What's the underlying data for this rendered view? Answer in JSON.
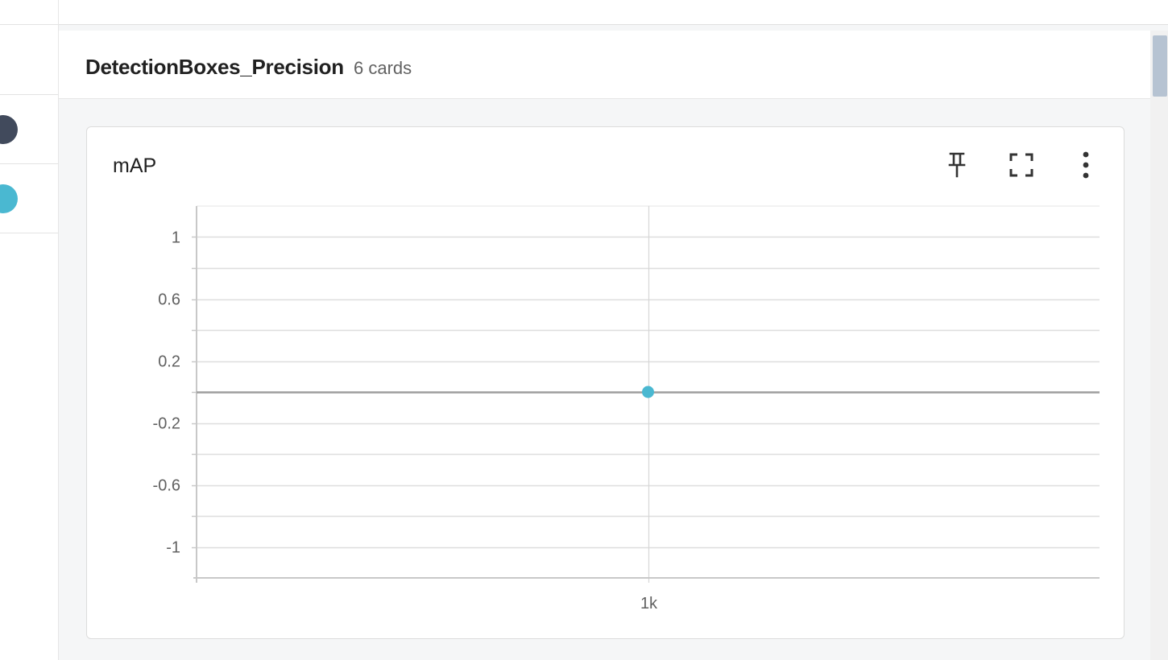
{
  "sidebar": {
    "runs": [
      {
        "color": "#414a5c"
      },
      {
        "color": "#4ab8d1"
      }
    ]
  },
  "group": {
    "title": "DetectionBoxes_Precision",
    "count_label": "6 cards"
  },
  "card": {
    "title": "mAP",
    "icons": [
      "pin-icon",
      "fullscreen-icon",
      "more-vert-icon"
    ]
  },
  "chart_data": {
    "type": "line",
    "title": "mAP",
    "xlabel": "",
    "ylabel": "",
    "x_ticks": [
      {
        "value": 1000,
        "label": "1k"
      }
    ],
    "y_ticks": [
      {
        "value": 1,
        "label": "1"
      },
      {
        "value": 0.6,
        "label": "0.6"
      },
      {
        "value": 0.2,
        "label": "0.2"
      },
      {
        "value": -0.2,
        "label": "-0.2"
      },
      {
        "value": -0.6,
        "label": "-0.6"
      },
      {
        "value": -1,
        "label": "-1"
      }
    ],
    "ylim": [
      -1.2,
      1.2
    ],
    "xlim": [
      0,
      2000
    ],
    "grid": true,
    "series": [
      {
        "color": "#4ab8d1",
        "x": [
          1000
        ],
        "y": [
          0
        ]
      }
    ]
  }
}
